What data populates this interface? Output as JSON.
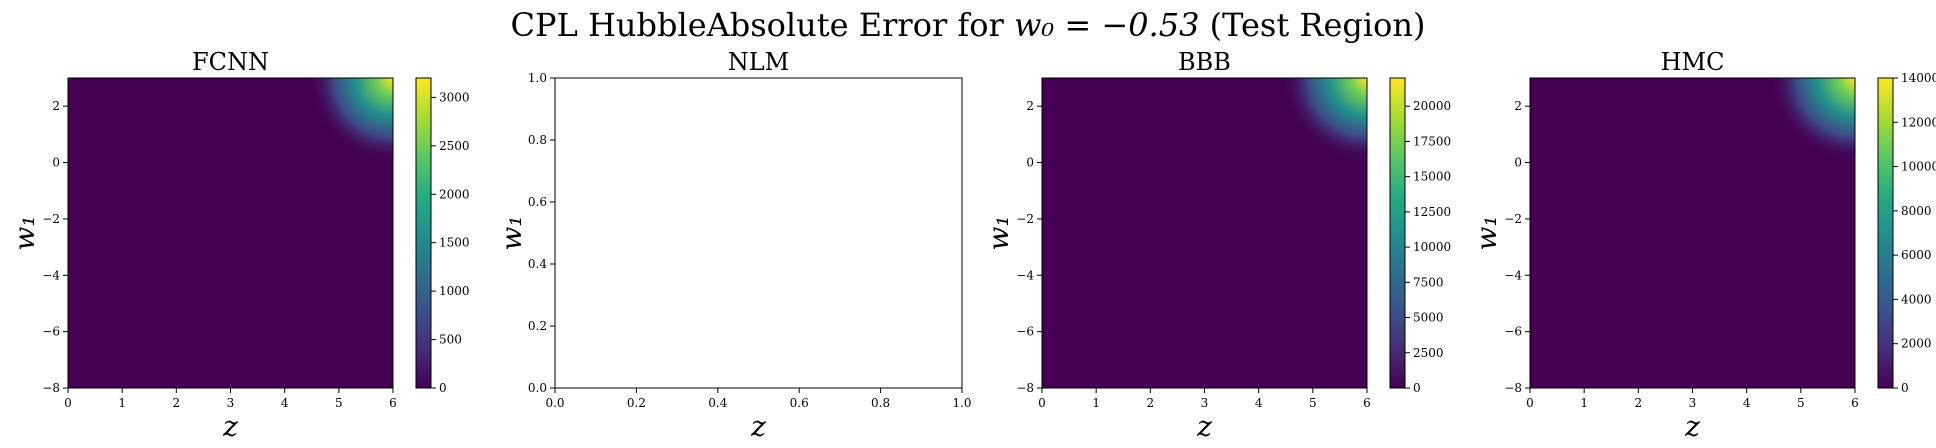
{
  "figure": {
    "title_prefix": "CPL HubbleAbsolute Error for ",
    "title_math": "w₀ = −0.53",
    "title_suffix": " (Test Region)"
  },
  "chart_data": [
    {
      "type": "heatmap",
      "title": "FCNN",
      "xlabel": "z",
      "ylabel": "w₁",
      "xlim": [
        0,
        6
      ],
      "ylim": [
        -8,
        3
      ],
      "xticks": [
        "0",
        "1",
        "2",
        "3",
        "4",
        "5",
        "6"
      ],
      "yticks": [
        "−8",
        "−6",
        "−4",
        "−2",
        "0",
        "2"
      ],
      "colormap": "viridis",
      "colorbar": {
        "min": 0,
        "max": 3200,
        "ticks": [
          "0",
          "500",
          "1000",
          "1500",
          "2000",
          "2500",
          "3000"
        ]
      },
      "hotspot": {
        "z": 6,
        "w1": 3,
        "value": 3200
      }
    },
    {
      "type": "heatmap",
      "title": "NLM",
      "xlabel": "z",
      "ylabel": "w₁",
      "xlim": [
        0,
        1
      ],
      "ylim": [
        0,
        1
      ],
      "xticks": [
        "0.0",
        "0.2",
        "0.4",
        "0.6",
        "0.8",
        "1.0"
      ],
      "yticks": [
        "0.0",
        "0.2",
        "0.4",
        "0.6",
        "0.8",
        "1.0"
      ],
      "empty": true
    },
    {
      "type": "heatmap",
      "title": "BBB",
      "xlabel": "z",
      "ylabel": "w₁",
      "xlim": [
        0,
        6
      ],
      "ylim": [
        -8,
        3
      ],
      "xticks": [
        "0",
        "1",
        "2",
        "3",
        "4",
        "5",
        "6"
      ],
      "yticks": [
        "−8",
        "−6",
        "−4",
        "−2",
        "0",
        "2"
      ],
      "colormap": "viridis",
      "colorbar": {
        "min": 0,
        "max": 22000,
        "ticks": [
          "0",
          "2500",
          "5000",
          "7500",
          "10000",
          "12500",
          "15000",
          "17500",
          "20000"
        ]
      },
      "hotspot": {
        "z": 6,
        "w1": 3,
        "value": 22000
      }
    },
    {
      "type": "heatmap",
      "title": "HMC",
      "xlabel": "z",
      "ylabel": "w₁",
      "xlim": [
        0,
        6
      ],
      "ylim": [
        -8,
        3
      ],
      "xticks": [
        "0",
        "1",
        "2",
        "3",
        "4",
        "5",
        "6"
      ],
      "yticks": [
        "−8",
        "−6",
        "−4",
        "−2",
        "0",
        "2"
      ],
      "colormap": "viridis",
      "colorbar": {
        "min": 0,
        "max": 14000,
        "ticks": [
          "0",
          "2000",
          "4000",
          "6000",
          "8000",
          "10000",
          "12000",
          "14000"
        ]
      },
      "hotspot": {
        "z": 6,
        "w1": 3,
        "value": 14000
      }
    }
  ]
}
